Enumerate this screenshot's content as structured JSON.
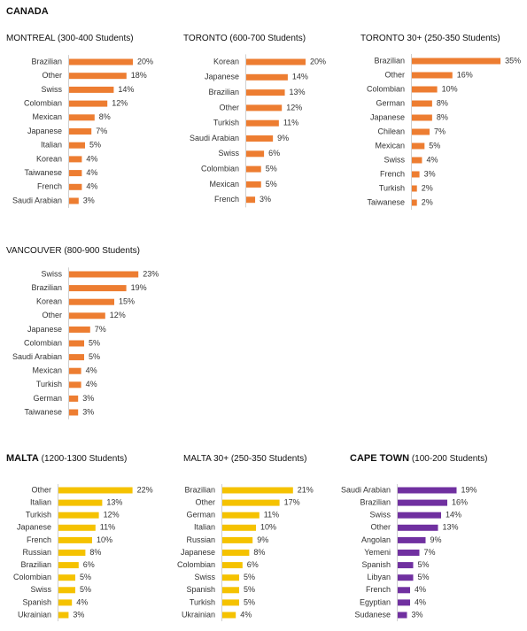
{
  "heading": "CANADA",
  "chart_data": [
    {
      "type": "bar",
      "title": "MONTREAL",
      "subtitle": "(300-400 Students)",
      "color": "#ed7d31",
      "categories": [
        "Brazilian",
        "Other",
        "Swiss",
        "Colombian",
        "Mexican",
        "Japanese",
        "Italian",
        "Korean",
        "Taiwanese",
        "French",
        "Saudi Arabian"
      ],
      "values": [
        20,
        18,
        14,
        12,
        8,
        7,
        5,
        4,
        4,
        4,
        3
      ],
      "value_labels": [
        "20%",
        "18%",
        "14%",
        "12%",
        "8%",
        "7%",
        "5%",
        "4%",
        "4%",
        "4%",
        "3%"
      ]
    },
    {
      "type": "bar",
      "title": "TORONTO",
      "subtitle": "(600-700 Students)",
      "color": "#ed7d31",
      "categories": [
        "Korean",
        "Japanese",
        "Brazilian",
        "Other",
        "Turkish",
        "Saudi Arabian",
        "Swiss",
        "Colombian",
        "Mexican",
        "French"
      ],
      "values": [
        20,
        14,
        13,
        12,
        11,
        9,
        6,
        5,
        5,
        3
      ],
      "value_labels": [
        "20%",
        "14%",
        "13%",
        "12%",
        "11%",
        "9%",
        "6%",
        "5%",
        "5%",
        "3%"
      ]
    },
    {
      "type": "bar",
      "title": "TORONTO 30+",
      "subtitle": "(250-350 Students)",
      "color": "#ed7d31",
      "categories": [
        "Brazilian",
        "Other",
        "Colombian",
        "German",
        "Japanese",
        "Chilean",
        "Mexican",
        "Swiss",
        "French",
        "Turkish",
        "Taiwanese"
      ],
      "values": [
        35,
        16,
        10,
        8,
        8,
        7,
        5,
        4,
        3,
        2,
        2
      ],
      "value_labels": [
        "35%",
        "16%",
        "10%",
        "8%",
        "8%",
        "7%",
        "5%",
        "4%",
        "3%",
        "2%",
        "2%"
      ]
    },
    {
      "type": "bar",
      "title": "VANCOUVER",
      "subtitle": "(800-900 Students)",
      "color": "#ed7d31",
      "categories": [
        "Swiss",
        "Brazilian",
        "Korean",
        "Other",
        "Japanese",
        "Colombian",
        "Saudi Arabian",
        "Mexican",
        "Turkish",
        "German",
        "Taiwanese"
      ],
      "values": [
        23,
        19,
        15,
        12,
        7,
        5,
        5,
        4,
        4,
        3,
        3
      ],
      "value_labels": [
        "23%",
        "19%",
        "15%",
        "12%",
        "7%",
        "5%",
        "5%",
        "4%",
        "4%",
        "3%",
        "3%"
      ]
    },
    {
      "type": "bar",
      "title": "MALTA",
      "subtitle": "(1200-1300 Students)",
      "color": "#f5c200",
      "categories": [
        "Other",
        "Italian",
        "Turkish",
        "Japanese",
        "French",
        "Russian",
        "Brazilian",
        "Colombian",
        "Swiss",
        "Spanish",
        "Ukrainian"
      ],
      "values": [
        22,
        13,
        12,
        11,
        10,
        8,
        6,
        5,
        5,
        4,
        3
      ],
      "value_labels": [
        "22%",
        "13%",
        "12%",
        "11%",
        "10%",
        "8%",
        "6%",
        "5%",
        "5%",
        "4%",
        "3%"
      ]
    },
    {
      "type": "bar",
      "title": "MALTA 30+",
      "subtitle": "(250-350 Students)",
      "color": "#f5c200",
      "categories": [
        "Brazilian",
        "Other",
        "German",
        "Italian",
        "Russian",
        "Japanese",
        "Colombian",
        "Swiss",
        "Spanish",
        "Turkish",
        "Ukrainian"
      ],
      "values": [
        21,
        17,
        11,
        10,
        9,
        8,
        6,
        5,
        5,
        5,
        4
      ],
      "value_labels": [
        "21%",
        "17%",
        "11%",
        "10%",
        "9%",
        "8%",
        "6%",
        "5%",
        "5%",
        "5%",
        "4%"
      ]
    },
    {
      "type": "bar",
      "title": "CAPE TOWN",
      "subtitle": "(100-200 Students)",
      "color": "#7030a0",
      "categories": [
        "Saudi Arabian",
        "Brazilian",
        "Swiss",
        "Other",
        "Angolan",
        "Yemeni",
        "Spanish",
        "Libyan",
        "French",
        "Egyptian",
        "Sudanese"
      ],
      "values": [
        19,
        16,
        14,
        13,
        9,
        7,
        5,
        5,
        4,
        4,
        3
      ],
      "value_labels": [
        "19%",
        "16%",
        "14%",
        "13%",
        "9%",
        "7%",
        "5%",
        "5%",
        "4%",
        "4%",
        "3%"
      ]
    }
  ]
}
